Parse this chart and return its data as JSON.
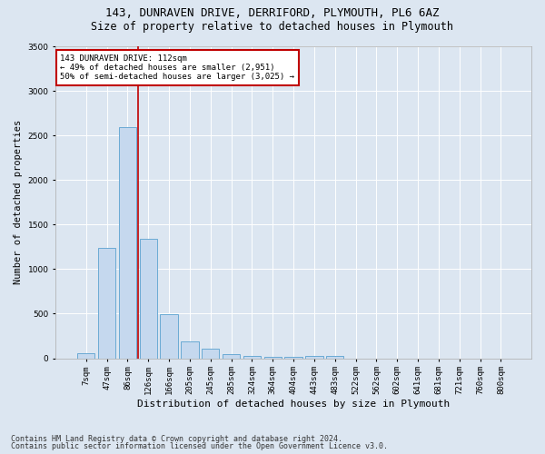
{
  "title1": "143, DUNRAVEN DRIVE, DERRIFORD, PLYMOUTH, PL6 6AZ",
  "title2": "Size of property relative to detached houses in Plymouth",
  "xlabel": "Distribution of detached houses by size in Plymouth",
  "ylabel": "Number of detached properties",
  "bar_labels": [
    "7sqm",
    "47sqm",
    "86sqm",
    "126sqm",
    "166sqm",
    "205sqm",
    "245sqm",
    "285sqm",
    "324sqm",
    "364sqm",
    "404sqm",
    "443sqm",
    "483sqm",
    "522sqm",
    "562sqm",
    "602sqm",
    "641sqm",
    "681sqm",
    "721sqm",
    "760sqm",
    "800sqm"
  ],
  "bar_values": [
    55,
    1240,
    2590,
    1340,
    495,
    185,
    110,
    50,
    30,
    20,
    15,
    30,
    30,
    0,
    0,
    0,
    0,
    0,
    0,
    0,
    0
  ],
  "bar_color": "#c5d8ee",
  "bar_edge_color": "#6aaad4",
  "vline_color": "#c00000",
  "annotation_text": "143 DUNRAVEN DRIVE: 112sqm\n← 49% of detached houses are smaller (2,951)\n50% of semi-detached houses are larger (3,025) →",
  "annotation_box_color": "#ffffff",
  "annotation_box_edge": "#c00000",
  "ylim": [
    0,
    3500
  ],
  "yticks": [
    0,
    500,
    1000,
    1500,
    2000,
    2500,
    3000,
    3500
  ],
  "background_color": "#dce6f1",
  "plot_bg_color": "#dce6f1",
  "footer1": "Contains HM Land Registry data © Crown copyright and database right 2024.",
  "footer2": "Contains public sector information licensed under the Open Government Licence v3.0.",
  "title1_fontsize": 9,
  "title2_fontsize": 8.5,
  "xlabel_fontsize": 8,
  "ylabel_fontsize": 7.5,
  "tick_fontsize": 6.5,
  "footer_fontsize": 6,
  "ann_fontsize": 6.5
}
